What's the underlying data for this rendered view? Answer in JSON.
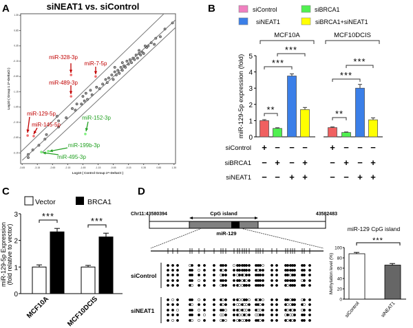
{
  "panel_labels": [
    "A",
    "B",
    "C",
    "D"
  ],
  "colors": {
    "red_text": "#c00000",
    "red_point": "#f07070",
    "green_text": "#20a020",
    "green_point": "#80f080",
    "b_siControl": "#f06060",
    "b_legend_siControl": "#f080c0",
    "b_siBRCA1": "#50f050",
    "b_siNEAT1": "#3b7fe8",
    "b_combo": "#ffff00",
    "gray_bar": "#808080"
  },
  "chart_data": [
    {
      "type": "scatter",
      "title": "siNEAT1 vs. siControl",
      "xlabel": "Log10 ( Control Group 2^-DeltaCt )",
      "ylabel": "Log10 ( Group 1 2^-DeltaCt )",
      "xlim": [
        -3.7,
        1.4
      ],
      "ylim": [
        -3.5,
        1.4
      ],
      "xticks": [
        "-3.65",
        "-3.15",
        "-2.65",
        "-2.15",
        "-1.65",
        "-1.15",
        "-0.65",
        "-0.15",
        "0.35",
        "0.85",
        "1.35"
      ],
      "yticks": [
        "1.35",
        "0.85",
        "0.35",
        "-0.15",
        "-0.65",
        "-1.15",
        "-1.65",
        "-2.15",
        "-2.65",
        "-3.15"
      ],
      "boundary_lines": [
        [
          [
            -3.72,
            -3.14
          ],
          [
            1.06,
            1.44
          ]
        ],
        [
          [
            -3.65,
            -3.39
          ],
          [
            1.4,
            1.2
          ]
        ],
        [
          [
            -3.02,
            -3.16
          ],
          [
            1.4,
            0.95
          ]
        ]
      ],
      "points": [
        [
          -3.45,
          -3.2
        ],
        [
          -3.45,
          -3.3
        ],
        [
          -3.3,
          -3.05
        ],
        [
          -3.1,
          -2.9
        ],
        [
          -2.9,
          -2.7
        ],
        [
          -2.85,
          -2.55
        ],
        [
          -2.45,
          -2.1
        ],
        [
          -2.45,
          -2.3
        ],
        [
          -2.5,
          -1.95
        ],
        [
          -2.2,
          -2.0
        ],
        [
          -2.0,
          -1.7
        ],
        [
          -1.9,
          -1.75
        ],
        [
          -1.85,
          -1.55
        ],
        [
          -1.7,
          -1.55
        ],
        [
          -1.65,
          -1.3
        ],
        [
          -1.6,
          -1.45
        ],
        [
          -1.55,
          -1.2
        ],
        [
          -1.5,
          -1.4
        ],
        [
          -1.4,
          -1.1
        ],
        [
          -1.35,
          -1.25
        ],
        [
          -1.2,
          -1.0
        ],
        [
          -1.1,
          -1.05
        ],
        [
          -1.0,
          -0.9
        ],
        [
          -0.9,
          -0.75
        ],
        [
          -0.85,
          -0.85
        ],
        [
          -0.8,
          -0.7
        ],
        [
          -0.7,
          -0.6
        ],
        [
          -0.65,
          -0.75
        ],
        [
          -0.6,
          -0.5
        ],
        [
          -0.55,
          -0.6
        ],
        [
          -0.5,
          -0.45
        ],
        [
          -0.45,
          -0.55
        ],
        [
          -0.4,
          -0.35
        ],
        [
          -0.35,
          -0.45
        ],
        [
          -0.3,
          -0.3
        ],
        [
          -0.25,
          -0.35
        ],
        [
          -0.2,
          -0.15
        ],
        [
          -0.15,
          -0.25
        ],
        [
          -0.1,
          -0.1
        ],
        [
          -0.05,
          -0.2
        ],
        [
          0,
          -0.05
        ],
        [
          0.05,
          -0.1
        ],
        [
          0.1,
          0.05
        ],
        [
          0.15,
          -0.05
        ],
        [
          0.2,
          0.1
        ],
        [
          0.25,
          0.05
        ],
        [
          0.3,
          0.15
        ],
        [
          0.2,
          0.2
        ],
        [
          0.35,
          0.1
        ],
        [
          0.45,
          0.3
        ],
        [
          0.5,
          0.35
        ],
        [
          0.6,
          0.45
        ],
        [
          0.7,
          0.4
        ],
        [
          0.75,
          0.6
        ],
        [
          0.9,
          0.65
        ],
        [
          1.05,
          0.9
        ],
        [
          1.3,
          1.1
        ],
        [
          -0.35,
          -0.2
        ],
        [
          -0.6,
          -0.35
        ],
        [
          0.4,
          0.35
        ]
      ],
      "highlighted": [
        {
          "label": "miR-328-3p",
          "x": -2.04,
          "y": -0.6,
          "direction": "up"
        },
        {
          "label": "miR-7-5p",
          "x": -1.23,
          "y": -0.65,
          "direction": "up"
        },
        {
          "label": "miR-489-3p",
          "x": -2.04,
          "y": -1.3,
          "direction": "up"
        },
        {
          "label": "miR-129-5p",
          "x": -3.47,
          "y": -2.58,
          "direction": "up"
        },
        {
          "label": "miR-145-5p",
          "x": -3.27,
          "y": -2.6,
          "direction": "up"
        },
        {
          "label": "miR-152-3p",
          "x": -1.57,
          "y": -2.53,
          "direction": "down"
        },
        {
          "label": "miR-199b-3p",
          "x": -2.79,
          "y": -3.09,
          "direction": "down"
        },
        {
          "label": "miR-495-3p",
          "x": -3.02,
          "y": -3.12,
          "direction": "down"
        }
      ]
    },
    {
      "type": "bar",
      "ylabel": "miR-129-5p expression (fold)",
      "ylim": [
        0,
        5
      ],
      "yticks": [
        "0",
        "1",
        "2",
        "3",
        "4",
        "5"
      ],
      "legend": [
        "siControl",
        "siBRCA1",
        "siNEAT1",
        "siBRCA1+siNEAT1"
      ],
      "groups": [
        "MCF10A",
        "MCF10DCIS"
      ],
      "values": [
        [
          1.0,
          0.52,
          3.75,
          1.68
        ],
        [
          0.57,
          0.27,
          3.0,
          1.05
        ]
      ],
      "errors": [
        [
          0.06,
          0.04,
          0.13,
          0.13
        ],
        [
          0.04,
          0.03,
          0.23,
          0.12
        ]
      ],
      "significance": [
        {
          "group": 0,
          "from": 0,
          "to": 1,
          "label": "**"
        },
        {
          "group": 0,
          "from": 0,
          "to": 2,
          "label": "***"
        },
        {
          "group": 0,
          "from": 1,
          "to": 3,
          "label": "***"
        },
        {
          "group": 1,
          "from": 0,
          "to": 1,
          "label": "**"
        },
        {
          "group": 1,
          "from": 0,
          "to": 2,
          "label": "***"
        },
        {
          "group": 1,
          "from": 1,
          "to": 3,
          "label": "***"
        }
      ],
      "treatment_rows": [
        {
          "label": "siControl",
          "signs": [
            "+",
            "−",
            "−",
            "−"
          ]
        },
        {
          "label": "siBRCA1",
          "signs": [
            "−",
            "+",
            "−",
            "+"
          ]
        },
        {
          "label": "siNEAT1",
          "signs": [
            "−",
            "−",
            "+",
            "+"
          ]
        }
      ]
    },
    {
      "type": "bar",
      "ylabel": "miR-129-5p Expression",
      "ylabel2": "(fold relative to vector)",
      "ylim": [
        0,
        3
      ],
      "yticks": [
        "0",
        "1",
        "2",
        "3"
      ],
      "legend": [
        "Vector",
        "BRCA1"
      ],
      "categories": [
        "MCF10A",
        "MCF10DCIS"
      ],
      "values": [
        [
          1.0,
          2.32
        ],
        [
          1.0,
          2.13
        ]
      ],
      "errors": [
        [
          0.08,
          0.13
        ],
        [
          0.06,
          0.14
        ]
      ],
      "significance": [
        "***",
        "***"
      ]
    },
    {
      "type": "bar",
      "title": "miR-129 CpG island",
      "ylabel": "Methylation level (%)",
      "ylim": [
        0,
        100
      ],
      "yticks": [
        "0",
        "20",
        "40",
        "60",
        "80",
        "100"
      ],
      "categories": [
        "siControl",
        "siNEAT1"
      ],
      "values": [
        88,
        66
      ],
      "errors": [
        2.5,
        3
      ],
      "significance": "***"
    }
  ],
  "panel_d": {
    "start_coord": "Chr11:43580394",
    "end_coord": "43582483",
    "cpg_label": "CpG island",
    "mir_label": "miR-129",
    "samples": [
      {
        "label": "siControl",
        "rows": [
          "111 0111 1 111 0111111 1110 11 11111 111",
          "111 1101 1 101 1111111 1011 11 11111 111",
          "111 1111 1 011 1011011 1111 11 11011 111",
          "111 1101 1 111 1110101 1111 11 11111 011",
          "111 1011 1 011 1100111 1111 11 10111 111"
        ]
      },
      {
        "label": "siNEAT1",
        "rows": [
          "101 1101 1 101 1100110 1010 11 11011 011",
          "111 1011 1 101 1001001 1101 11 10011 101",
          "110 1101 1 110 1101001 1001 11 10101 011",
          "111 1110 1 001 1100101 0011 11 01001 111",
          "101 1001 1 010 1010011 1101 11 10101 111"
        ]
      }
    ]
  }
}
